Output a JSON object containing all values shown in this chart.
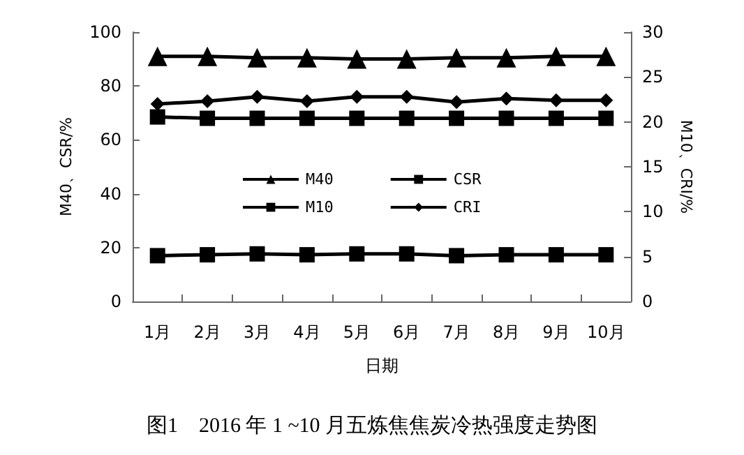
{
  "chart_data": {
    "type": "line",
    "title": "图1　2016 年 1 ~10 月五炼焦焦炭冷热强度走势图",
    "xlabel": "日期",
    "ylabel": "M40、CSR/%",
    "y2label": "M10、CRI/%",
    "categories": [
      "1月",
      "2月",
      "3月",
      "4月",
      "5月",
      "6月",
      "7月",
      "8月",
      "9月",
      "10月"
    ],
    "ylim": [
      0,
      100
    ],
    "yticks": [
      0,
      20,
      40,
      60,
      80,
      100
    ],
    "y2lim": [
      0,
      30
    ],
    "y2ticks": [
      0,
      5,
      10,
      15,
      20,
      25,
      30
    ],
    "grid": false,
    "legend": "center",
    "line_style": "solid",
    "series": [
      {
        "name": "M40",
        "color": "#000000",
        "marker": "triangle",
        "values": [
          91,
          91,
          90.5,
          90.5,
          90,
          90,
          90.5,
          90.5,
          91,
          91
        ]
      },
      {
        "name": "CSR",
        "color": "#000000",
        "marker": "square",
        "values": [
          68.5,
          68,
          68,
          68,
          68,
          68,
          68,
          68,
          68,
          68
        ]
      },
      {
        "name": "M10",
        "color": "#000000",
        "marker": "square",
        "axis": "y2",
        "values": [
          5.1,
          5.2,
          5.3,
          5.2,
          5.3,
          5.3,
          5.1,
          5.2,
          5.2,
          5.2
        ]
      },
      {
        "name": "CRI",
        "color": "#000000",
        "marker": "diamond",
        "axis": "y2",
        "values": [
          22,
          22.3,
          22.8,
          22.3,
          22.8,
          22.8,
          22.2,
          22.6,
          22.4,
          22.4
        ]
      }
    ]
  }
}
